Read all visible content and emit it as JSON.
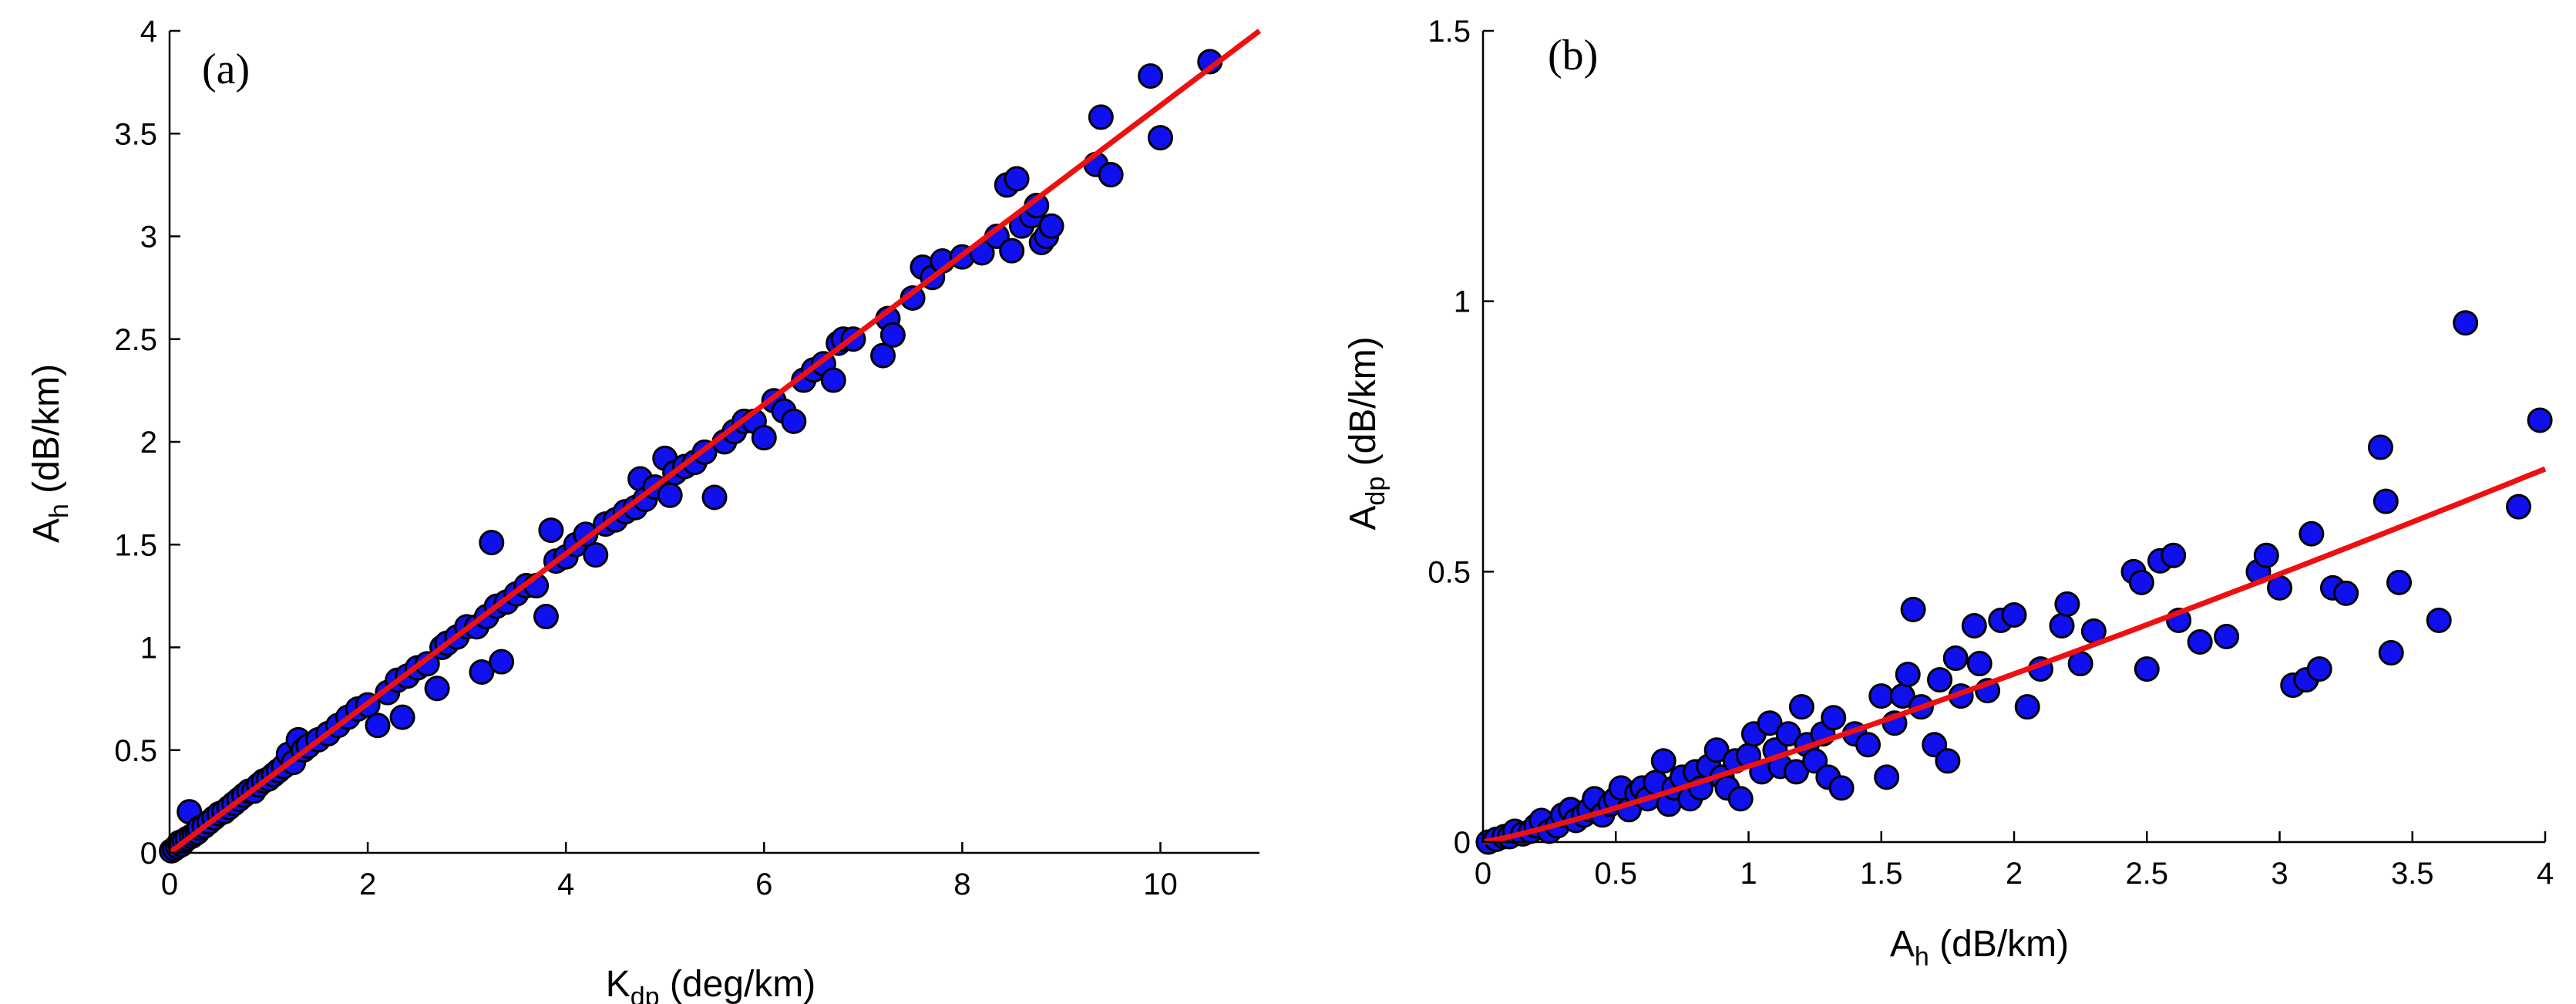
{
  "colors": {
    "marker_fill": "#1010ee",
    "marker_edge": "#000000",
    "fit_line": "#ee1010"
  },
  "chart_data": [
    {
      "id": "a",
      "type": "scatter",
      "panel_label": "(a)",
      "xlabel": {
        "main": "K",
        "sub": "dp",
        "unit": " (deg/km)"
      },
      "ylabel": {
        "main": "A",
        "sub": "h",
        "unit": " (dB/km)"
      },
      "xlim": [
        0,
        11
      ],
      "ylim": [
        0,
        4
      ],
      "xticks": [
        0,
        2,
        4,
        6,
        8,
        10
      ],
      "xtick_labels": [
        "0",
        "2",
        "4",
        "6",
        "8",
        "10"
      ],
      "yticks": [
        0,
        0.5,
        1,
        1.5,
        2,
        2.5,
        3,
        3.5,
        4
      ],
      "ytick_labels": [
        "0",
        "0.5",
        "1",
        "1.5",
        "2",
        "2.5",
        "3",
        "3.5",
        "4"
      ],
      "fit_line": {
        "x": [
          0,
          11
        ],
        "y": [
          0,
          4.0
        ]
      },
      "points": [
        [
          0.02,
          0.01
        ],
        [
          0.05,
          0.02
        ],
        [
          0.08,
          0.03
        ],
        [
          0.1,
          0.05
        ],
        [
          0.12,
          0.04
        ],
        [
          0.15,
          0.06
        ],
        [
          0.18,
          0.07
        ],
        [
          0.2,
          0.2
        ],
        [
          0.22,
          0.08
        ],
        [
          0.25,
          0.09
        ],
        [
          0.28,
          0.1
        ],
        [
          0.3,
          0.12
        ],
        [
          0.35,
          0.13
        ],
        [
          0.4,
          0.15
        ],
        [
          0.45,
          0.17
        ],
        [
          0.5,
          0.19
        ],
        [
          0.55,
          0.2
        ],
        [
          0.6,
          0.22
        ],
        [
          0.65,
          0.24
        ],
        [
          0.7,
          0.26
        ],
        [
          0.75,
          0.28
        ],
        [
          0.8,
          0.3
        ],
        [
          0.85,
          0.3
        ],
        [
          0.9,
          0.33
        ],
        [
          0.95,
          0.35
        ],
        [
          1.0,
          0.36
        ],
        [
          1.05,
          0.38
        ],
        [
          1.1,
          0.4
        ],
        [
          1.15,
          0.42
        ],
        [
          1.2,
          0.48
        ],
        [
          1.3,
          0.55
        ],
        [
          1.25,
          0.44
        ],
        [
          1.35,
          0.5
        ],
        [
          1.4,
          0.52
        ],
        [
          1.5,
          0.55
        ],
        [
          1.6,
          0.58
        ],
        [
          1.7,
          0.62
        ],
        [
          1.8,
          0.66
        ],
        [
          1.9,
          0.7
        ],
        [
          2.0,
          0.72
        ],
        [
          2.1,
          0.62
        ],
        [
          2.2,
          0.78
        ],
        [
          2.3,
          0.84
        ],
        [
          2.4,
          0.86
        ],
        [
          2.35,
          0.66
        ],
        [
          2.5,
          0.9
        ],
        [
          2.6,
          0.92
        ],
        [
          2.7,
          0.8
        ],
        [
          2.75,
          1.0
        ],
        [
          2.8,
          1.02
        ],
        [
          2.9,
          1.05
        ],
        [
          3.0,
          1.1
        ],
        [
          3.1,
          1.1
        ],
        [
          3.15,
          0.88
        ],
        [
          3.2,
          1.15
        ],
        [
          3.25,
          1.51
        ],
        [
          3.3,
          1.2
        ],
        [
          3.35,
          0.93
        ],
        [
          3.4,
          1.22
        ],
        [
          3.5,
          1.26
        ],
        [
          3.6,
          1.3
        ],
        [
          3.7,
          1.3
        ],
        [
          3.8,
          1.15
        ],
        [
          3.85,
          1.57
        ],
        [
          3.9,
          1.42
        ],
        [
          4.0,
          1.44
        ],
        [
          4.1,
          1.5
        ],
        [
          4.2,
          1.55
        ],
        [
          4.3,
          1.45
        ],
        [
          4.4,
          1.6
        ],
        [
          4.5,
          1.62
        ],
        [
          4.6,
          1.66
        ],
        [
          4.7,
          1.68
        ],
        [
          4.75,
          1.82
        ],
        [
          4.8,
          1.72
        ],
        [
          4.9,
          1.78
        ],
        [
          5.0,
          1.92
        ],
        [
          5.05,
          1.74
        ],
        [
          5.1,
          1.85
        ],
        [
          5.2,
          1.88
        ],
        [
          5.3,
          1.9
        ],
        [
          5.4,
          1.95
        ],
        [
          5.5,
          1.73
        ],
        [
          5.6,
          2.0
        ],
        [
          5.7,
          2.05
        ],
        [
          5.8,
          2.1
        ],
        [
          5.9,
          2.1
        ],
        [
          6.0,
          2.02
        ],
        [
          6.1,
          2.2
        ],
        [
          6.2,
          2.15
        ],
        [
          6.3,
          2.1
        ],
        [
          6.4,
          2.3
        ],
        [
          6.5,
          2.35
        ],
        [
          6.6,
          2.38
        ],
        [
          6.7,
          2.3
        ],
        [
          6.75,
          2.48
        ],
        [
          6.8,
          2.5
        ],
        [
          6.9,
          2.5
        ],
        [
          7.2,
          2.42
        ],
        [
          7.25,
          2.6
        ],
        [
          7.3,
          2.52
        ],
        [
          7.5,
          2.7
        ],
        [
          7.6,
          2.85
        ],
        [
          7.7,
          2.8
        ],
        [
          7.8,
          2.88
        ],
        [
          8.0,
          2.9
        ],
        [
          8.2,
          2.92
        ],
        [
          8.35,
          3.0
        ],
        [
          8.45,
          3.25
        ],
        [
          8.5,
          2.93
        ],
        [
          8.55,
          3.28
        ],
        [
          8.6,
          3.05
        ],
        [
          8.7,
          3.1
        ],
        [
          8.75,
          3.15
        ],
        [
          8.8,
          2.97
        ],
        [
          8.85,
          3.0
        ],
        [
          8.9,
          3.05
        ],
        [
          9.35,
          3.35
        ],
        [
          9.4,
          3.58
        ],
        [
          9.5,
          3.3
        ],
        [
          9.9,
          3.78
        ],
        [
          10.0,
          3.48
        ],
        [
          10.5,
          3.85
        ]
      ]
    },
    {
      "id": "b",
      "type": "scatter",
      "panel_label": "(b)",
      "xlabel": {
        "main": "A",
        "sub": "h",
        "unit": " (dB/km)"
      },
      "ylabel": {
        "main": "A",
        "sub": "dp",
        "unit": " (dB/km)"
      },
      "xlim": [
        0,
        4
      ],
      "ylim": [
        0,
        1.5
      ],
      "xticks": [
        0,
        0.5,
        1,
        1.5,
        2,
        2.5,
        3,
        3.5,
        4
      ],
      "xtick_labels": [
        "0",
        "0.5",
        "1",
        "1.5",
        "2",
        "2.5",
        "3",
        "3.5",
        "4"
      ],
      "yticks": [
        0,
        0.5,
        1,
        1.5
      ],
      "ytick_labels": [
        "0",
        "0.5",
        "1",
        "1.5"
      ],
      "fit_line": {
        "x": [
          0,
          4
        ],
        "y": [
          0,
          0.69
        ],
        "exponent": 1.15
      },
      "points": [
        [
          0.02,
          0.0
        ],
        [
          0.05,
          0.005
        ],
        [
          0.08,
          0.01
        ],
        [
          0.1,
          0.01
        ],
        [
          0.12,
          0.02
        ],
        [
          0.15,
          0.015
        ],
        [
          0.18,
          0.02
        ],
        [
          0.2,
          0.03
        ],
        [
          0.22,
          0.04
        ],
        [
          0.25,
          0.02
        ],
        [
          0.28,
          0.03
        ],
        [
          0.3,
          0.05
        ],
        [
          0.33,
          0.06
        ],
        [
          0.35,
          0.04
        ],
        [
          0.38,
          0.05
        ],
        [
          0.4,
          0.06
        ],
        [
          0.42,
          0.08
        ],
        [
          0.45,
          0.05
        ],
        [
          0.48,
          0.07
        ],
        [
          0.5,
          0.08
        ],
        [
          0.52,
          0.1
        ],
        [
          0.55,
          0.06
        ],
        [
          0.58,
          0.09
        ],
        [
          0.6,
          0.1
        ],
        [
          0.62,
          0.08
        ],
        [
          0.65,
          0.11
        ],
        [
          0.68,
          0.15
        ],
        [
          0.7,
          0.07
        ],
        [
          0.72,
          0.1
        ],
        [
          0.75,
          0.12
        ],
        [
          0.78,
          0.08
        ],
        [
          0.8,
          0.13
        ],
        [
          0.82,
          0.1
        ],
        [
          0.85,
          0.14
        ],
        [
          0.88,
          0.17
        ],
        [
          0.9,
          0.12
        ],
        [
          0.92,
          0.1
        ],
        [
          0.95,
          0.15
        ],
        [
          0.97,
          0.08
        ],
        [
          1.0,
          0.16
        ],
        [
          1.02,
          0.2
        ],
        [
          1.05,
          0.13
        ],
        [
          1.08,
          0.22
        ],
        [
          1.1,
          0.17
        ],
        [
          1.12,
          0.14
        ],
        [
          1.15,
          0.2
        ],
        [
          1.18,
          0.13
        ],
        [
          1.2,
          0.25
        ],
        [
          1.22,
          0.18
        ],
        [
          1.25,
          0.15
        ],
        [
          1.28,
          0.2
        ],
        [
          1.3,
          0.12
        ],
        [
          1.32,
          0.23
        ],
        [
          1.35,
          0.1
        ],
        [
          1.4,
          0.2
        ],
        [
          1.45,
          0.18
        ],
        [
          1.5,
          0.27
        ],
        [
          1.52,
          0.12
        ],
        [
          1.55,
          0.22
        ],
        [
          1.58,
          0.27
        ],
        [
          1.6,
          0.31
        ],
        [
          1.62,
          0.43
        ],
        [
          1.65,
          0.25
        ],
        [
          1.7,
          0.18
        ],
        [
          1.72,
          0.3
        ],
        [
          1.75,
          0.15
        ],
        [
          1.78,
          0.34
        ],
        [
          1.8,
          0.27
        ],
        [
          1.85,
          0.4
        ],
        [
          1.87,
          0.33
        ],
        [
          1.9,
          0.28
        ],
        [
          1.95,
          0.41
        ],
        [
          2.0,
          0.42
        ],
        [
          2.05,
          0.25
        ],
        [
          2.1,
          0.32
        ],
        [
          2.18,
          0.4
        ],
        [
          2.2,
          0.44
        ],
        [
          2.25,
          0.33
        ],
        [
          2.3,
          0.39
        ],
        [
          2.45,
          0.5
        ],
        [
          2.48,
          0.48
        ],
        [
          2.5,
          0.32
        ],
        [
          2.55,
          0.52
        ],
        [
          2.6,
          0.53
        ],
        [
          2.62,
          0.41
        ],
        [
          2.7,
          0.37
        ],
        [
          2.8,
          0.38
        ],
        [
          2.92,
          0.5
        ],
        [
          2.95,
          0.53
        ],
        [
          3.0,
          0.47
        ],
        [
          3.05,
          0.29
        ],
        [
          3.1,
          0.3
        ],
        [
          3.12,
          0.57
        ],
        [
          3.15,
          0.32
        ],
        [
          3.2,
          0.47
        ],
        [
          3.25,
          0.46
        ],
        [
          3.38,
          0.73
        ],
        [
          3.4,
          0.63
        ],
        [
          3.42,
          0.35
        ],
        [
          3.45,
          0.48
        ],
        [
          3.6,
          0.41
        ],
        [
          3.7,
          0.96
        ],
        [
          3.9,
          0.62
        ],
        [
          3.98,
          0.78
        ]
      ]
    }
  ]
}
